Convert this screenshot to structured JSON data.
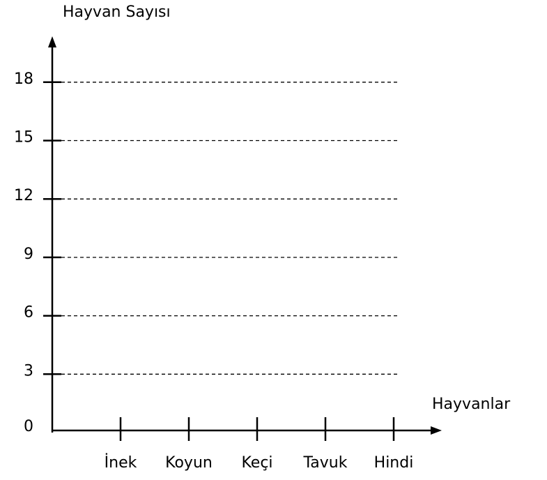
{
  "chart_data": {
    "type": "bar",
    "y_label": "Hayvan Sayısı",
    "x_label": "Hayvanlar",
    "categories": [
      "İnek",
      "Koyun",
      "Keçi",
      "Tavuk",
      "Hindi"
    ],
    "ylim": [
      0,
      20
    ],
    "yticks": [
      0,
      3,
      6,
      9,
      12,
      15,
      18
    ],
    "grid": true
  }
}
